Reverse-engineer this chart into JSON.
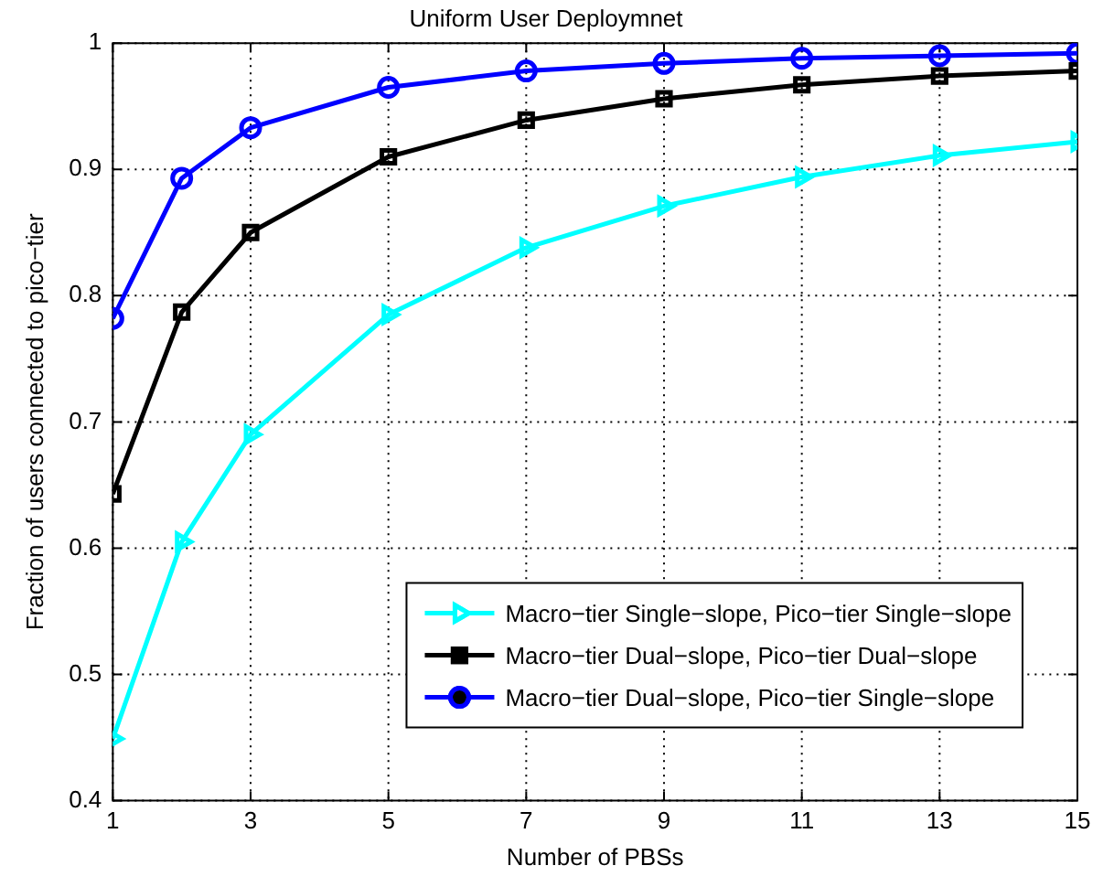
{
  "chart_data": {
    "type": "line",
    "title": "Uniform User Deploymnet",
    "xlabel": "Number of PBSs",
    "ylabel": "Fraction of users connected to pico−tier",
    "x": [
      1,
      2,
      3,
      5,
      7,
      9,
      11,
      13,
      15
    ],
    "series": [
      {
        "name": "Macro−tier Single−slope, Pico−tier Single−slope",
        "color": "#00ffff",
        "marker": "triangle",
        "values": [
          0.449,
          0.605,
          0.69,
          0.785,
          0.838,
          0.871,
          0.894,
          0.911,
          0.922
        ]
      },
      {
        "name": "Macro−tier Dual−slope, Pico−tier Dual−slope",
        "color": "#000000",
        "marker": "square",
        "values": [
          0.643,
          0.787,
          0.85,
          0.91,
          0.939,
          0.956,
          0.967,
          0.974,
          0.978
        ]
      },
      {
        "name": "Macro−tier Dual−slope, Pico−tier Single−slope",
        "color": "#0000ff",
        "marker": "circle",
        "values": [
          0.782,
          0.893,
          0.933,
          0.965,
          0.978,
          0.984,
          0.988,
          0.99,
          0.992
        ]
      }
    ],
    "xlim": [
      1,
      15
    ],
    "xticks": [
      1,
      3,
      5,
      7,
      9,
      11,
      13,
      15
    ],
    "ylim": [
      0.4,
      1
    ],
    "yticks": [
      0.4,
      0.5,
      0.6,
      0.7,
      0.8,
      0.9,
      1
    ],
    "grid": true,
    "legend": "bottom right",
    "line_style": "solid"
  }
}
